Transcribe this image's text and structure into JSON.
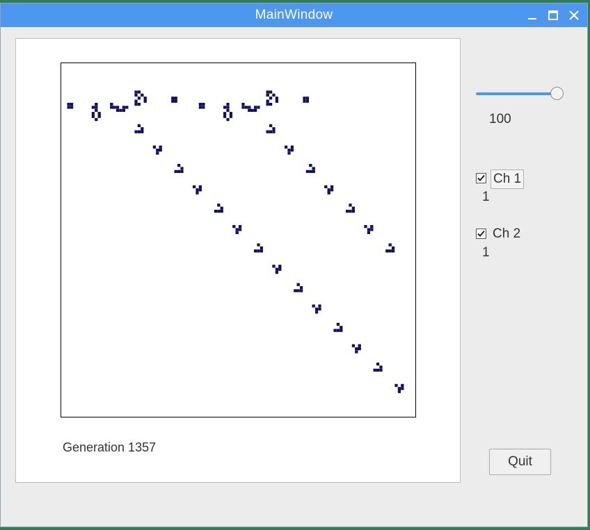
{
  "window": {
    "title": "MainWindow",
    "controls": [
      "minimize-icon",
      "maximize-icon",
      "close-icon"
    ]
  },
  "simulation": {
    "generation_label": "Generation 1357",
    "cell_color": "#0c0c8c"
  },
  "slider": {
    "value": "100",
    "accent_color": "#4d97f0"
  },
  "channels": [
    {
      "label": "Ch 1",
      "checked": true,
      "value": "1"
    },
    {
      "label": "Ch 2",
      "checked": true,
      "value": "1"
    }
  ],
  "quit_label": "Quit"
}
